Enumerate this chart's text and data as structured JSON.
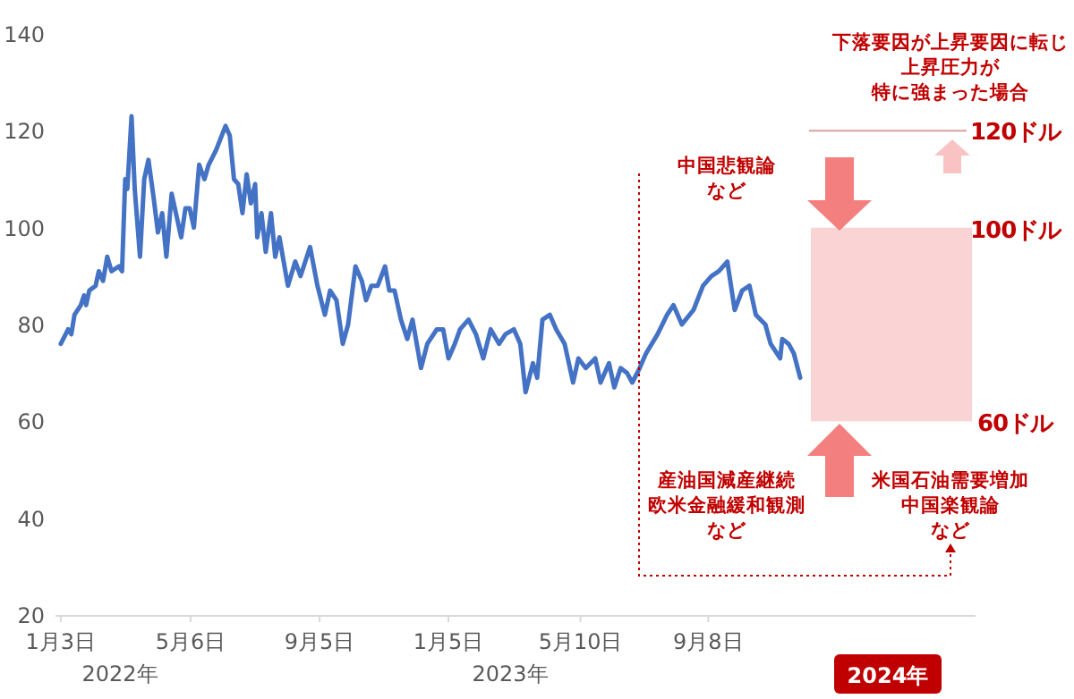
{
  "chart_data": {
    "type": "line",
    "x": [
      "2022-01-03",
      "2022-01-10",
      "2022-01-13",
      "2022-01-16",
      "2022-01-22",
      "2022-01-25",
      "2022-01-27",
      "2022-01-30",
      "2022-02-05",
      "2022-02-08",
      "2022-02-12",
      "2022-02-16",
      "2022-02-20",
      "2022-02-27",
      "2022-03-02",
      "2022-03-05",
      "2022-03-07",
      "2022-03-11",
      "2022-03-14",
      "2022-03-19",
      "2022-03-23",
      "2022-03-27",
      "2022-04-01",
      "2022-04-05",
      "2022-04-09",
      "2022-04-13",
      "2022-04-18",
      "2022-04-23",
      "2022-04-27",
      "2022-05-01",
      "2022-05-05",
      "2022-05-09",
      "2022-05-14",
      "2022-05-19",
      "2022-05-23",
      "2022-05-30",
      "2022-06-08",
      "2022-06-12",
      "2022-06-16",
      "2022-06-20",
      "2022-06-24",
      "2022-06-28",
      "2022-07-02",
      "2022-07-06",
      "2022-07-08",
      "2022-07-12",
      "2022-07-16",
      "2022-07-21",
      "2022-07-25",
      "2022-07-29",
      "2022-08-06",
      "2022-08-13",
      "2022-08-18",
      "2022-08-27",
      "2022-09-03",
      "2022-09-10",
      "2022-09-15",
      "2022-09-21",
      "2022-09-27",
      "2022-10-02",
      "2022-10-09",
      "2022-10-15",
      "2022-10-19",
      "2022-10-24",
      "2022-10-30",
      "2022-11-06",
      "2022-11-10",
      "2022-11-15",
      "2022-11-21",
      "2022-11-27",
      "2022-12-02",
      "2022-12-10",
      "2022-12-16",
      "2022-12-25",
      "2022-12-31",
      "2023-01-05",
      "2023-01-11",
      "2023-01-16",
      "2023-01-24",
      "2023-01-31",
      "2023-02-07",
      "2023-02-14",
      "2023-02-22",
      "2023-02-28",
      "2023-03-08",
      "2023-03-14",
      "2023-03-19",
      "2023-03-26",
      "2023-03-30",
      "2023-04-04",
      "2023-04-11",
      "2023-04-17",
      "2023-04-25",
      "2023-05-03",
      "2023-05-08",
      "2023-05-15",
      "2023-05-24",
      "2023-05-29",
      "2023-06-06",
      "2023-06-11",
      "2023-06-17",
      "2023-06-23",
      "2023-06-28",
      "2023-07-05",
      "2023-07-11",
      "2023-07-22",
      "2023-07-31",
      "2023-08-06",
      "2023-08-14",
      "2023-08-25",
      "2023-09-03",
      "2023-09-11",
      "2023-09-18",
      "2023-09-26",
      "2023-10-03",
      "2023-10-10",
      "2023-10-17",
      "2023-10-23",
      "2023-11-01",
      "2023-11-06",
      "2023-11-15",
      "2023-11-17",
      "2023-11-23",
      "2023-11-28",
      "2023-12-04"
    ],
    "series": [
      {
        "color": "#4472c4",
        "values": [
          76,
          79,
          78,
          82,
          84,
          86,
          84,
          87,
          88,
          91,
          89,
          94,
          91,
          92,
          91,
          110,
          108,
          123,
          108,
          94,
          110,
          114,
          106,
          99,
          103,
          94,
          107,
          102,
          98,
          104,
          104,
          100,
          113,
          110,
          113,
          116,
          121,
          119,
          110,
          109,
          103,
          111,
          105,
          109,
          98,
          103,
          95,
          103,
          94,
          98,
          88,
          93,
          90,
          96,
          88,
          82,
          87,
          85,
          76,
          80,
          92,
          89,
          85,
          88,
          88,
          92,
          87,
          87,
          81,
          77,
          81,
          71,
          76,
          79,
          79,
          73,
          76,
          79,
          81,
          78,
          73,
          79,
          76,
          78,
          79,
          76,
          66,
          72,
          69,
          81,
          82,
          79,
          76,
          68,
          73,
          71,
          73,
          68,
          72,
          67,
          71,
          70,
          68,
          71,
          74,
          78,
          82,
          84,
          80,
          83,
          88,
          90,
          91,
          93,
          83,
          87,
          88,
          82,
          80,
          76,
          73,
          77,
          76,
          74,
          69
        ]
      }
    ],
    "xlim": [
      "2021-12-29",
      "2024-05-18"
    ],
    "xticks": [
      {
        "value": "2022-01-03",
        "label": "1月3日"
      },
      {
        "value": "2022-05-06",
        "label": "5月6日"
      },
      {
        "value": "2022-09-05",
        "label": "9月5日"
      },
      {
        "value": "2023-01-05",
        "label": "1月5日"
      },
      {
        "value": "2023-05-10",
        "label": "5月10日"
      },
      {
        "value": "2023-09-08",
        "label": "9月8日"
      }
    ],
    "ylim": [
      20,
      140
    ],
    "yticks": [
      20,
      40,
      60,
      80,
      100,
      120,
      140
    ],
    "bands": [
      {
        "axis": "y",
        "from": 60,
        "to": 100,
        "color": "#fad4d4"
      }
    ],
    "ref_lines": [
      {
        "axis": "y",
        "value": 120,
        "label": "120ドル",
        "color": "#d9a0a0"
      }
    ],
    "annotations": [
      "2022年",
      "2023年",
      "100ドル",
      "60ドル",
      "中国悲観論",
      "など",
      "産油国減産継続",
      "欧米金融緩和観測",
      "など",
      "米国石油需要増加",
      "中国楽観論",
      "など",
      "下落要因が上昇要因に転じ",
      "上昇圧力が",
      "特に強まった場合",
      "2024年"
    ]
  }
}
